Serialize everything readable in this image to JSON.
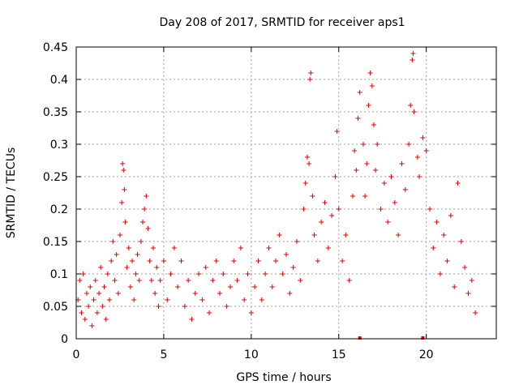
{
  "chart_data": {
    "type": "scatter",
    "title": "Day 208 of 2017, SRMTID for receiver aps1",
    "xlabel": "GPS time / hours",
    "ylabel": "SRMTID / TECUs",
    "xlim": [
      0,
      24
    ],
    "ylim": [
      0,
      0.45
    ],
    "xticks": [
      0,
      5,
      10,
      15,
      20
    ],
    "yticks": [
      0,
      0.05,
      0.1,
      0.15,
      0.2,
      0.25,
      0.3,
      0.35,
      0.4,
      0.45
    ],
    "xtick_labels": [
      "0",
      "5",
      "10",
      "15",
      "20"
    ],
    "ytick_labels": [
      "0",
      "0.05",
      "0.1",
      "0.15",
      "0.2",
      "0.25",
      "0.3",
      "0.35",
      "0.4",
      "0.45"
    ],
    "grid": true,
    "marker": "plus",
    "color": "#e00000",
    "series": [
      {
        "name": "SRMTID",
        "points": [
          [
            0.1,
            0.06
          ],
          [
            0.2,
            0.09
          ],
          [
            0.3,
            0.04
          ],
          [
            0.4,
            0.1
          ],
          [
            0.5,
            0.03
          ],
          [
            0.6,
            0.07
          ],
          [
            0.7,
            0.05
          ],
          [
            0.8,
            0.08
          ],
          [
            0.9,
            0.02
          ],
          [
            1.0,
            0.06
          ],
          [
            1.1,
            0.09
          ],
          [
            1.2,
            0.04
          ],
          [
            1.3,
            0.07
          ],
          [
            1.4,
            0.11
          ],
          [
            1.5,
            0.05
          ],
          [
            1.6,
            0.08
          ],
          [
            1.7,
            0.03
          ],
          [
            1.8,
            0.1
          ],
          [
            1.9,
            0.06
          ],
          [
            2.0,
            0.12
          ],
          [
            2.1,
            0.15
          ],
          [
            2.2,
            0.09
          ],
          [
            2.3,
            0.13
          ],
          [
            2.4,
            0.07
          ],
          [
            2.5,
            0.16
          ],
          [
            2.6,
            0.21
          ],
          [
            2.65,
            0.27
          ],
          [
            2.7,
            0.26
          ],
          [
            2.75,
            0.23
          ],
          [
            2.8,
            0.18
          ],
          [
            2.9,
            0.11
          ],
          [
            3.0,
            0.14
          ],
          [
            3.1,
            0.08
          ],
          [
            3.2,
            0.12
          ],
          [
            3.3,
            0.06
          ],
          [
            3.4,
            0.1
          ],
          [
            3.5,
            0.13
          ],
          [
            3.6,
            0.09
          ],
          [
            3.7,
            0.15
          ],
          [
            3.8,
            0.18
          ],
          [
            3.9,
            0.2
          ],
          [
            4.0,
            0.22
          ],
          [
            4.1,
            0.17
          ],
          [
            4.2,
            0.12
          ],
          [
            4.3,
            0.09
          ],
          [
            4.4,
            0.14
          ],
          [
            4.5,
            0.07
          ],
          [
            4.6,
            0.11
          ],
          [
            4.7,
            0.05
          ],
          [
            4.8,
            0.09
          ],
          [
            5.0,
            0.12
          ],
          [
            5.2,
            0.06
          ],
          [
            5.4,
            0.1
          ],
          [
            5.6,
            0.14
          ],
          [
            5.8,
            0.08
          ],
          [
            6.0,
            0.12
          ],
          [
            6.2,
            0.05
          ],
          [
            6.4,
            0.09
          ],
          [
            6.6,
            0.03
          ],
          [
            6.8,
            0.07
          ],
          [
            7.0,
            0.1
          ],
          [
            7.2,
            0.06
          ],
          [
            7.4,
            0.11
          ],
          [
            7.6,
            0.04
          ],
          [
            7.8,
            0.09
          ],
          [
            8.0,
            0.12
          ],
          [
            8.2,
            0.07
          ],
          [
            8.4,
            0.1
          ],
          [
            8.6,
            0.05
          ],
          [
            8.8,
            0.08
          ],
          [
            9.0,
            0.12
          ],
          [
            9.2,
            0.09
          ],
          [
            9.4,
            0.14
          ],
          [
            9.6,
            0.06
          ],
          [
            9.8,
            0.1
          ],
          [
            10.0,
            0.04
          ],
          [
            10.2,
            0.08
          ],
          [
            10.4,
            0.12
          ],
          [
            10.6,
            0.06
          ],
          [
            10.8,
            0.1
          ],
          [
            11.0,
            0.14
          ],
          [
            11.2,
            0.08
          ],
          [
            11.4,
            0.12
          ],
          [
            11.6,
            0.16
          ],
          [
            11.8,
            0.1
          ],
          [
            12.0,
            0.13
          ],
          [
            12.2,
            0.07
          ],
          [
            12.4,
            0.11
          ],
          [
            12.6,
            0.15
          ],
          [
            12.8,
            0.09
          ],
          [
            13.0,
            0.2
          ],
          [
            13.1,
            0.24
          ],
          [
            13.2,
            0.28
          ],
          [
            13.3,
            0.27
          ],
          [
            13.35,
            0.4
          ],
          [
            13.4,
            0.41
          ],
          [
            13.5,
            0.22
          ],
          [
            13.6,
            0.16
          ],
          [
            13.8,
            0.12
          ],
          [
            14.0,
            0.18
          ],
          [
            14.2,
            0.21
          ],
          [
            14.4,
            0.14
          ],
          [
            14.6,
            0.19
          ],
          [
            14.8,
            0.25
          ],
          [
            14.9,
            0.32
          ],
          [
            15.0,
            0.2
          ],
          [
            15.2,
            0.12
          ],
          [
            15.4,
            0.16
          ],
          [
            15.6,
            0.09
          ],
          [
            15.8,
            0.22
          ],
          [
            15.9,
            0.29
          ],
          [
            16.0,
            0.26
          ],
          [
            16.1,
            0.34
          ],
          [
            16.2,
            0.38
          ],
          [
            16.4,
            0.3
          ],
          [
            16.5,
            0.22
          ],
          [
            16.6,
            0.27
          ],
          [
            16.7,
            0.36
          ],
          [
            16.8,
            0.41
          ],
          [
            16.9,
            0.39
          ],
          [
            17.0,
            0.33
          ],
          [
            17.1,
            0.26
          ],
          [
            17.2,
            0.3
          ],
          [
            17.4,
            0.2
          ],
          [
            17.6,
            0.24
          ],
          [
            17.8,
            0.18
          ],
          [
            18.0,
            0.25
          ],
          [
            18.2,
            0.21
          ],
          [
            18.4,
            0.16
          ],
          [
            18.6,
            0.27
          ],
          [
            18.8,
            0.23
          ],
          [
            19.0,
            0.3
          ],
          [
            19.1,
            0.36
          ],
          [
            19.2,
            0.43
          ],
          [
            19.25,
            0.44
          ],
          [
            19.3,
            0.35
          ],
          [
            19.5,
            0.28
          ],
          [
            19.6,
            0.25
          ],
          [
            19.8,
            0.31
          ],
          [
            20.0,
            0.29
          ],
          [
            20.2,
            0.2
          ],
          [
            20.4,
            0.14
          ],
          [
            20.6,
            0.18
          ],
          [
            20.8,
            0.1
          ],
          [
            21.0,
            0.16
          ],
          [
            21.2,
            0.12
          ],
          [
            21.4,
            0.19
          ],
          [
            21.6,
            0.08
          ],
          [
            21.8,
            0.24
          ],
          [
            22.0,
            0.15
          ],
          [
            22.2,
            0.11
          ],
          [
            22.4,
            0.07
          ],
          [
            22.6,
            0.09
          ],
          [
            22.8,
            0.04
          ]
        ]
      }
    ],
    "marker_squares_x": [
      16.2,
      19.8
    ]
  }
}
